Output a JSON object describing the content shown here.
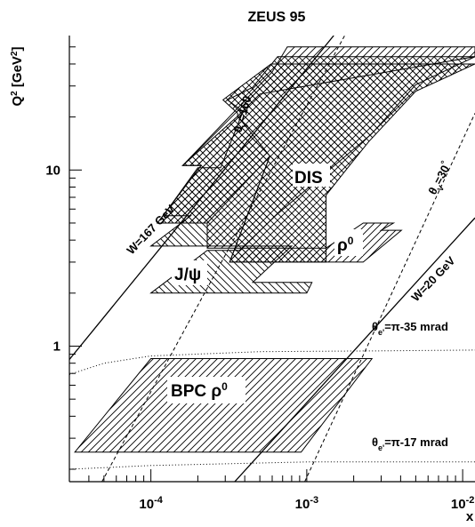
{
  "chart_data": {
    "type": "scatter",
    "title": "ZEUS 95",
    "xlabel": "x",
    "ylabel": "Q",
    "ylabel_sup": "2",
    "ylabel_unit_prefix": " [GeV",
    "ylabel_unit_sup": "2",
    "ylabel_unit_suffix": "]",
    "x_scale": "log",
    "y_scale": "log",
    "xlim": [
      3e-05,
      0.012
    ],
    "ylim": [
      0.17,
      58
    ],
    "grid": false,
    "x_ticks": [
      {
        "value": 0.0001,
        "base": "10",
        "exp": "-4"
      },
      {
        "value": 0.001,
        "base": "10",
        "exp": "-3"
      },
      {
        "value": 0.01,
        "base": "10",
        "exp": "-2"
      }
    ],
    "y_ticks": [
      {
        "value": 1,
        "label": "1"
      },
      {
        "value": 10,
        "label": "10"
      }
    ],
    "regions": [
      {
        "name": "DIS",
        "label": "DIS",
        "hatch": "cross",
        "polygon": [
          [
            0.00133,
            3.0
          ],
          [
            0.00133,
            7.2
          ],
          [
            0.00188,
            10.6
          ],
          [
            0.0025,
            14.5
          ],
          [
            0.005,
            28
          ],
          [
            0.012,
            40
          ],
          [
            0.00059,
            40
          ],
          [
            0.00029,
            25
          ],
          [
            0.00036,
            21
          ],
          [
            0.00036,
            20.2
          ],
          [
            0.00016,
            10.6
          ],
          [
            0.00021,
            10.6
          ],
          [
            0.00011,
            5.0
          ],
          [
            0.00023,
            5.0
          ],
          [
            0.00058,
            12.0
          ],
          [
            0.00032,
            3.0
          ]
        ]
      },
      {
        "name": "J/psi",
        "label": "J/ψ",
        "hatch": "diagonal-down",
        "polygon": [
          [
            0.0001,
            2.0
          ],
          [
            0.001,
            2.0
          ],
          [
            0.00108,
            2.3
          ],
          [
            0.00045,
            2.3
          ],
          [
            0.0008,
            3.7
          ],
          [
            0.0001,
            3.7
          ],
          [
            0.00018,
            5.5
          ],
          [
            0.00012,
            5.5
          ],
          [
            0.0002,
            10.3
          ],
          [
            0.00028,
            10.3
          ],
          [
            0.00039,
            21.5
          ],
          [
            0.00031,
            25.0
          ],
          [
            0.00045,
            29.5
          ],
          [
            0.00065,
            44.0
          ],
          [
            0.012,
            44.0
          ],
          [
            0.005,
            30.5
          ],
          [
            0.0026,
            16.0
          ],
          [
            0.00063,
            5.5
          ],
          [
            0.00037,
            3.5
          ],
          [
            0.00023,
            3.5
          ]
        ]
      },
      {
        "name": "rho0",
        "label": "ρ",
        "label_sup": "0",
        "hatch": "diagonal-up",
        "polygon": [
          [
            0.00032,
            3.0
          ],
          [
            0.0023,
            3.0
          ],
          [
            0.00405,
            4.55
          ],
          [
            0.003,
            4.55
          ],
          [
            0.0036,
            5.0
          ],
          [
            0.0023,
            5.0
          ],
          [
            0.00133,
            3.6
          ],
          [
            0.00023,
            3.6
          ],
          [
            0.00023,
            5.0
          ],
          [
            0.00011,
            5.0
          ],
          [
            0.00021,
            10.6
          ],
          [
            0.00016,
            10.6
          ],
          [
            0.0006,
            36
          ],
          [
            0.00075,
            50
          ],
          [
            0.012,
            50
          ],
          [
            0.012,
            44
          ],
          [
            0.0005,
            27
          ],
          [
            0.00036,
            20.2
          ],
          [
            0.00058,
            12.0
          ]
        ]
      },
      {
        "name": "BPC rho0",
        "label": "BPC ρ",
        "label_sup": "0",
        "hatch": "diagonal-up",
        "polygon": [
          [
            3.25e-05,
            0.25
          ],
          [
            0.00092,
            0.25
          ],
          [
            0.00262,
            0.85
          ],
          [
            0.0001,
            0.85
          ]
        ]
      }
    ],
    "lines": [
      {
        "name": "W=167 GeV",
        "label": "W=167 GeV",
        "style": "solid",
        "points": [
          [
            3e-05,
            0.84
          ],
          [
            0.00149,
            58
          ]
        ]
      },
      {
        "name": "W=20 GeV",
        "label": "W=20 GeV",
        "style": "solid",
        "points": [
          [
            0.000345,
            0.17
          ],
          [
            0.012,
            5.35
          ]
        ]
      },
      {
        "name": "theta_V=160",
        "label_parts": [
          "θ",
          "V",
          "=160",
          "°"
        ],
        "style": "dashed",
        "points": [
          [
            4.85e-05,
            0.17
          ],
          [
            0.00175,
            58
          ]
        ]
      },
      {
        "name": "theta_V=30",
        "label_parts": [
          "θ",
          "V",
          "=30",
          "°"
        ],
        "style": "dashed",
        "points": [
          [
            0.00097,
            0.17
          ],
          [
            0.012,
            21
          ]
        ]
      },
      {
        "name": "theta_e=pi-35 mrad",
        "label_parts": [
          "θ",
          "e'",
          "=π-35 mrad"
        ],
        "style": "dotted",
        "points": [
          [
            3e-05,
            0.69
          ],
          [
            5e-05,
            0.8
          ],
          [
            0.0001,
            0.88
          ],
          [
            0.0005,
            0.93
          ],
          [
            0.003,
            0.94
          ],
          [
            0.012,
            0.95
          ]
        ]
      },
      {
        "name": "theta_e=pi-17 mrad",
        "label_parts": [
          "θ",
          "e'",
          "=π-17 mrad"
        ],
        "style": "dotted",
        "points": [
          [
            3e-05,
            0.2
          ],
          [
            0.0001,
            0.21
          ],
          [
            0.001,
            0.22
          ],
          [
            0.012,
            0.22
          ]
        ]
      }
    ]
  }
}
